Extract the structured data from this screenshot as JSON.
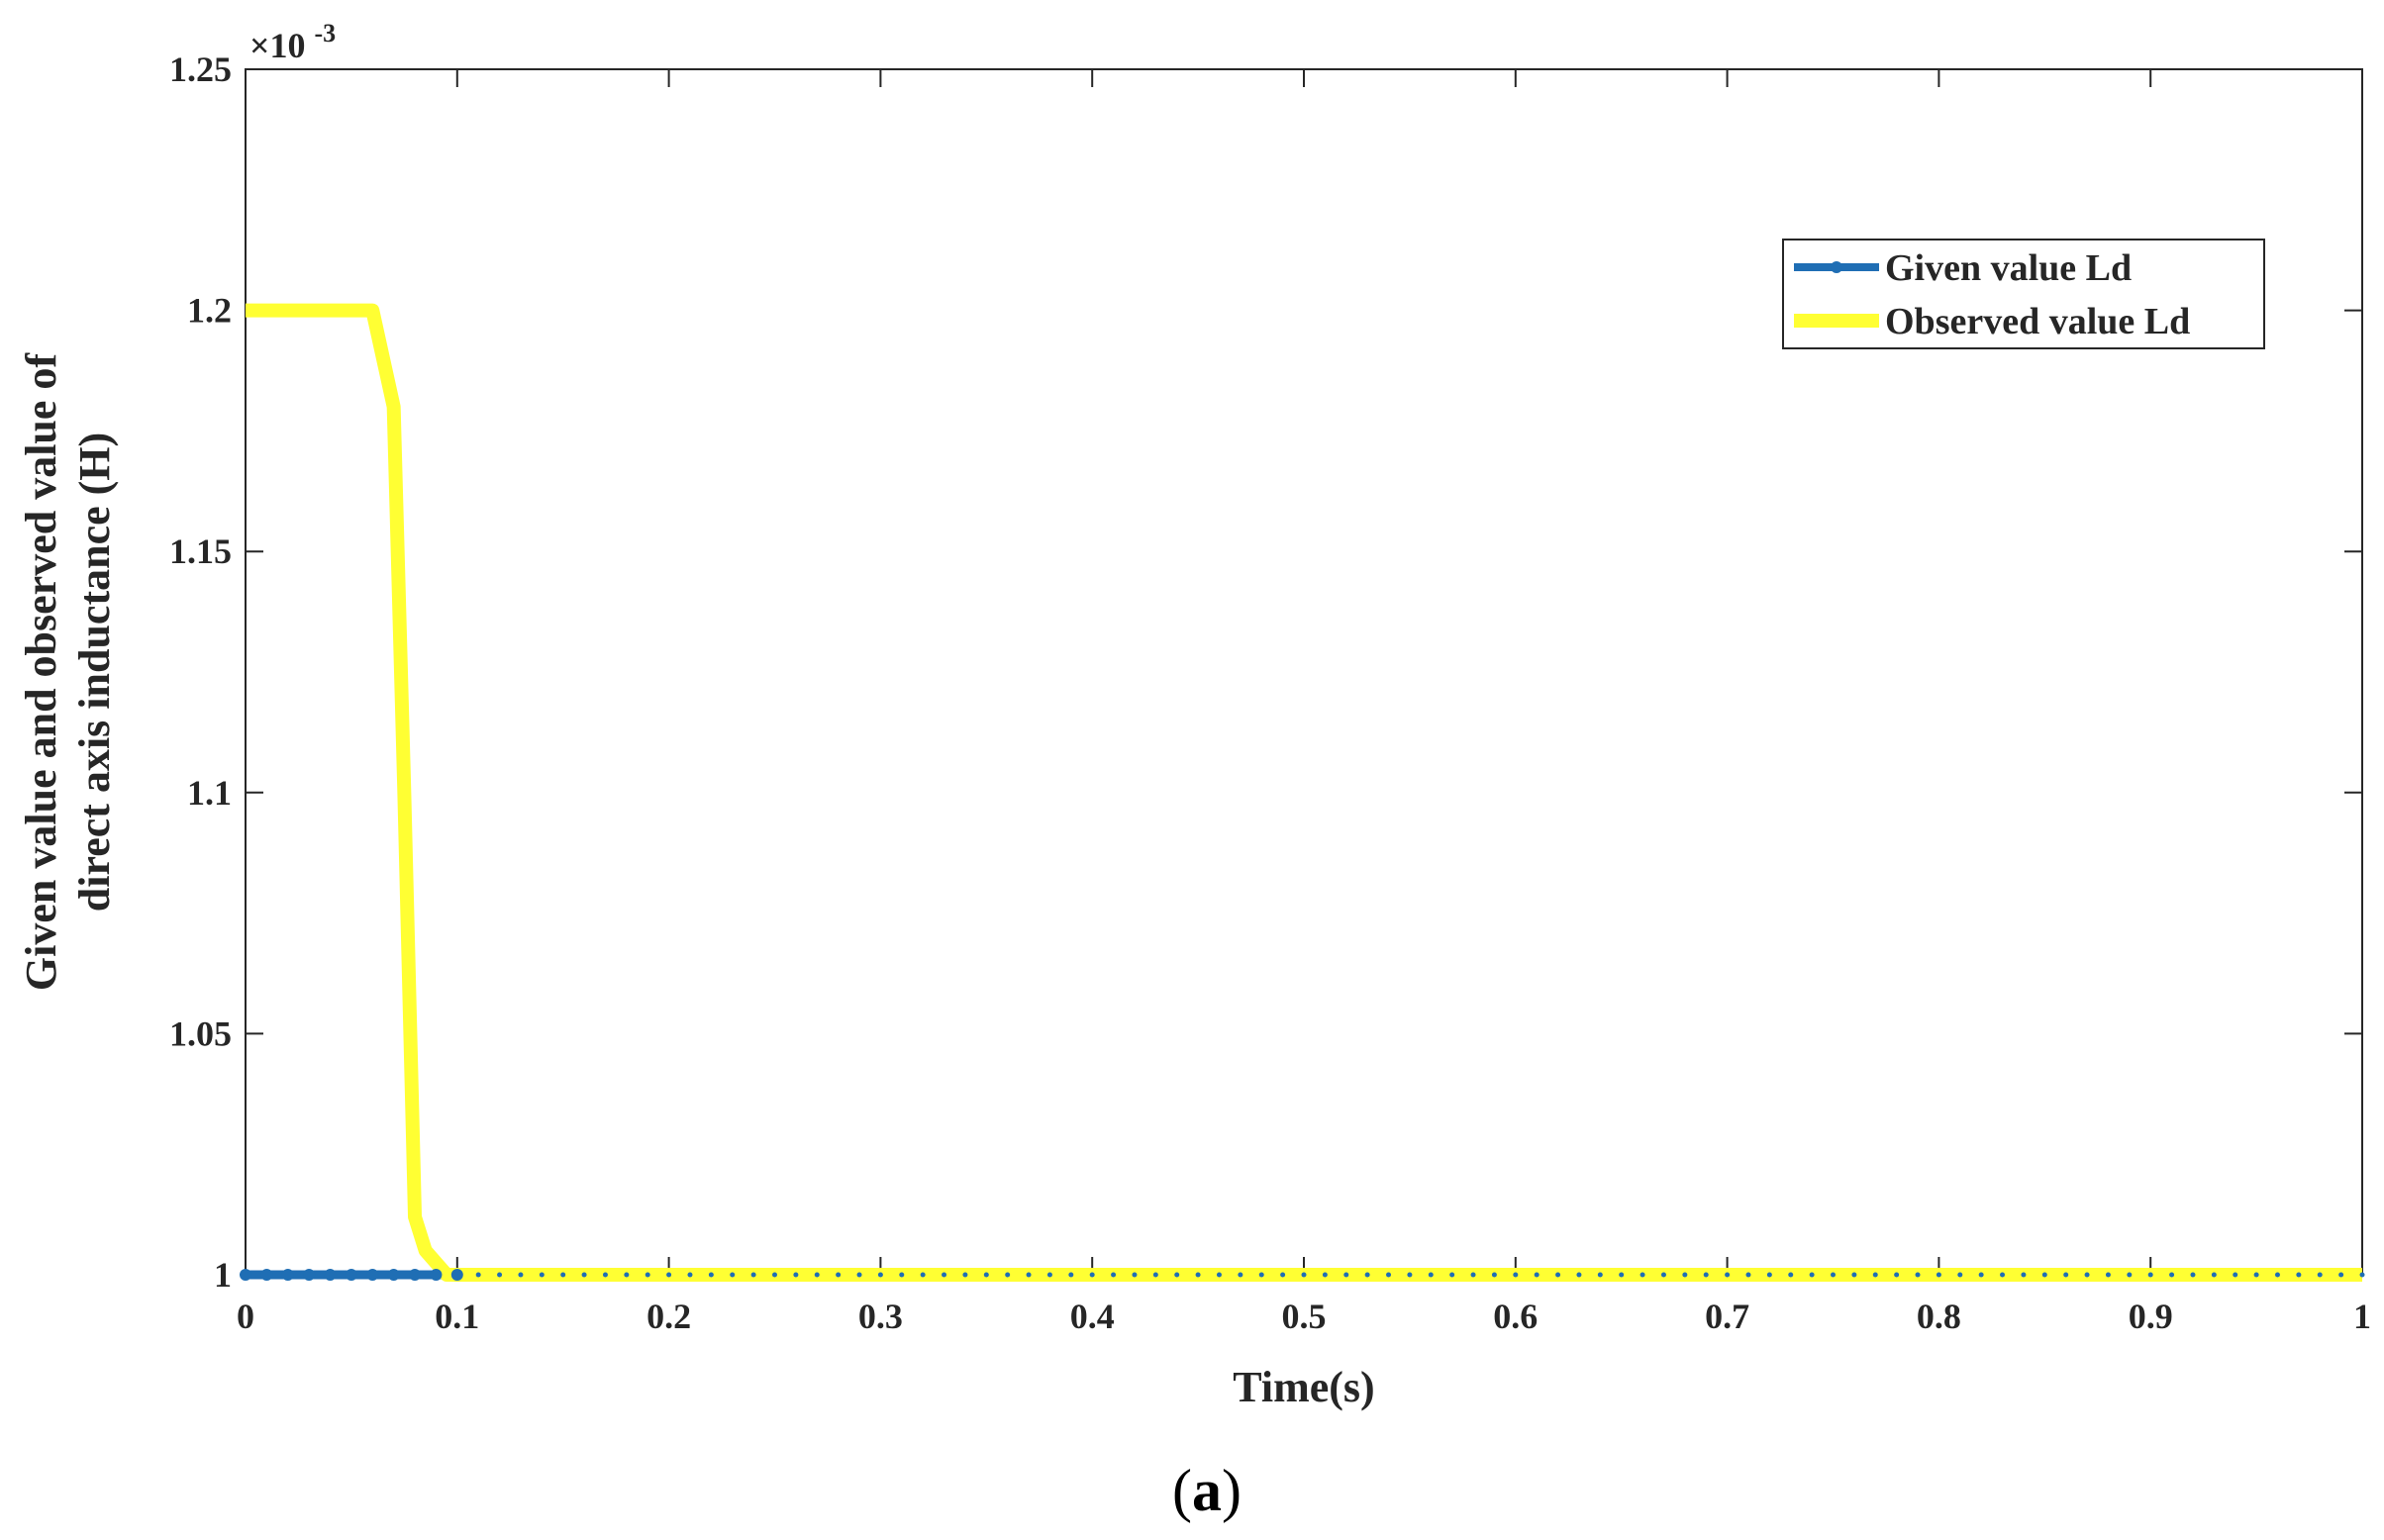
{
  "chart_data": {
    "type": "line",
    "xlabel": "Time(s)",
    "ylabel_lines": [
      "Given value and observed value of",
      "direct axis inductance (H)"
    ],
    "y_exponent": "×10",
    "y_exponent_power": "-3",
    "caption_open": "(",
    "caption_bold": "a",
    "caption_close": ")",
    "xlim": [
      0,
      1
    ],
    "ylim": [
      1.0,
      1.25
    ],
    "x_ticks": [
      0,
      0.1,
      0.2,
      0.3,
      0.4,
      0.5,
      0.6,
      0.7,
      0.8,
      0.9,
      1
    ],
    "x_tick_labels": [
      "0",
      "0.1",
      "0.2",
      "0.3",
      "0.4",
      "0.5",
      "0.6",
      "0.7",
      "0.8",
      "0.9",
      "1"
    ],
    "y_ticks": [
      1.0,
      1.05,
      1.1,
      1.15,
      1.2,
      1.25
    ],
    "y_tick_labels": [
      "1",
      "1.05",
      "1.1",
      "1.15",
      "1.2",
      "1.25"
    ],
    "grid": false,
    "legend_position": "top-right",
    "series": [
      {
        "name": "Given value Ld",
        "color": "#1f6eb4",
        "marker": "dot",
        "x": [
          0,
          0.1,
          0.2,
          0.3,
          0.4,
          0.5,
          0.6,
          0.7,
          0.8,
          0.9,
          1.0
        ],
        "y": [
          1.0,
          1.0,
          1.0,
          1.0,
          1.0,
          1.0,
          1.0,
          1.0,
          1.0,
          1.0,
          1.0
        ]
      },
      {
        "name": "Observed value Ld",
        "color": "#ffff33",
        "marker": "none",
        "x": [
          0,
          0.06,
          0.07,
          0.075,
          0.08,
          0.085,
          0.095,
          0.1,
          0.2,
          0.3,
          0.4,
          0.5,
          0.6,
          0.7,
          0.8,
          0.9,
          1.0
        ],
        "y": [
          1.2,
          1.2,
          1.18,
          1.1,
          1.012,
          1.005,
          1.0,
          1.0,
          1.0,
          1.0,
          1.0,
          1.0,
          1.0,
          1.0,
          1.0,
          1.0,
          1.0
        ]
      }
    ]
  }
}
